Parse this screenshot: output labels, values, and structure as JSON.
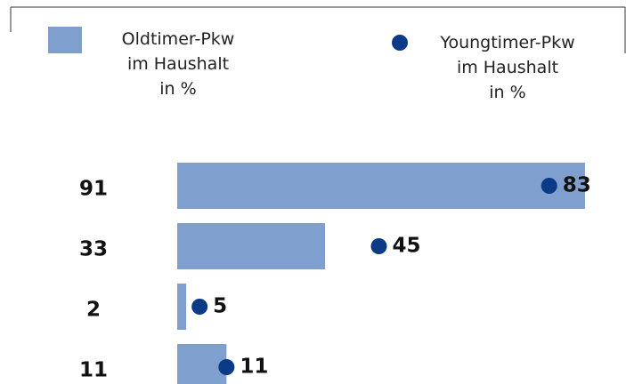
{
  "chart_data": {
    "type": "bar",
    "categories": [
      null,
      null,
      null,
      null
    ],
    "series": [
      {
        "name": "Oldtimer-Pkw\nim Haushalt\nin %",
        "type": "bar",
        "color": "#7f9fcf",
        "values": [
          91,
          33,
          2,
          11
        ]
      },
      {
        "name": "Youngtimer-Pkw\nim Haushalt\nin %",
        "type": "dot",
        "color": "#0b3a86",
        "values": [
          83,
          45,
          5,
          11
        ]
      }
    ]
  }
}
